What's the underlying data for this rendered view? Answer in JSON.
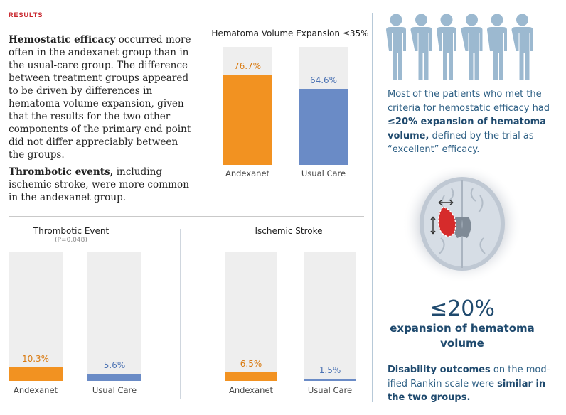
{
  "results_label": "RESULTS",
  "paragraphs": {
    "p1_bold": "Hemostatic efficacy",
    "p1_rest": " occurred more often in the andexanet group than in the usual-care group. The difference between treatment groups appeared to be driven by differences in hemato­ma volume expansion, given that the results for the two other components of the primary end point did not differ appreciably between the groups.",
    "p2_bold": "Thrombotic events,",
    "p2_rest": " including ischemic stroke, were more common in the andexanet group."
  },
  "colors": {
    "andexanet": "#f29221",
    "usual_care": "#6a8bc6",
    "bar_bg": "#eeeeee",
    "navy": "#1f4a6e",
    "steel": "#2d5f84",
    "figure": "#9cb9d0"
  },
  "chart_data": [
    {
      "type": "bar",
      "title": "Hematoma Volume Expansion ≤35%",
      "categories": [
        "Andexanet",
        "Usual Care"
      ],
      "values": [
        76.7,
        64.6
      ],
      "value_labels": [
        "76.7%",
        "64.6%"
      ],
      "ylim": [
        0,
        100
      ]
    },
    {
      "type": "bar",
      "title": "Thrombotic Event",
      "subtitle": "(P=0.048)",
      "categories": [
        "Andexanet",
        "Usual Care"
      ],
      "values": [
        10.3,
        5.6
      ],
      "value_labels": [
        "10.3%",
        "5.6%"
      ],
      "ylim": [
        0,
        100
      ]
    },
    {
      "type": "bar",
      "title": "Ischemic Stroke",
      "categories": [
        "Andexanet",
        "Usual Care"
      ],
      "values": [
        6.5,
        1.5
      ],
      "value_labels": [
        "6.5%",
        "1.5%"
      ],
      "ylim": [
        0,
        100
      ]
    }
  ],
  "side": {
    "text1_a": "Most of the patients who met the criteria for hemostatic efficacy had ",
    "text1_bold": "≤20% expansion of hematoma volume,",
    "text1_b": " defined by the trial as “excellent” efficacy.",
    "big_number": "≤20%",
    "big_caption": "expansion of hematoma volume",
    "text2_bold_a": "Disability outcomes",
    "text2_mid": " on the mod­ified Rankin scale were ",
    "text2_bold_b": "similar in the two groups."
  }
}
